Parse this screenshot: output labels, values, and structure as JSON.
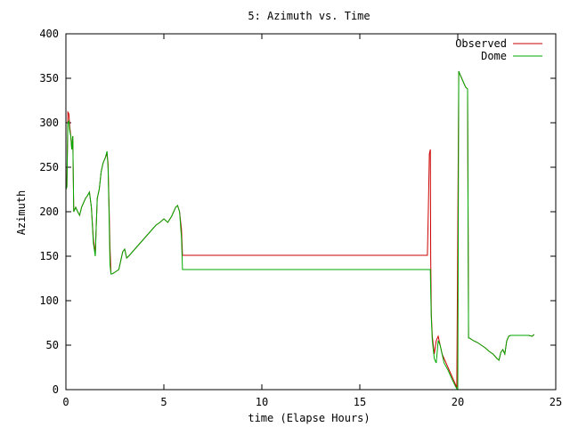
{
  "chart_data": {
    "type": "line",
    "title": "5: Azimuth vs. Time",
    "xlabel": "time (Elapse Hours)",
    "ylabel": "Azimuth",
    "xlim": [
      0,
      25
    ],
    "ylim": [
      0,
      400
    ],
    "xticks": [
      0,
      5,
      10,
      15,
      20,
      25
    ],
    "yticks": [
      0,
      50,
      100,
      150,
      200,
      250,
      300,
      350,
      400
    ],
    "grid": false,
    "legend": "top-right",
    "series": [
      {
        "name": "Observed",
        "color": "#cc0000",
        "x": [
          0.0,
          0.05,
          0.1,
          0.15,
          0.2,
          0.25,
          0.3,
          0.35,
          0.4,
          0.5,
          0.6,
          0.7,
          0.8,
          0.9,
          1.0,
          1.1,
          1.2,
          1.3,
          1.4,
          1.5,
          1.55,
          1.6,
          1.7,
          1.8,
          1.9,
          2.0,
          2.1,
          2.15,
          2.2,
          2.25,
          2.3,
          2.35,
          2.5,
          2.7,
          2.9,
          3.0,
          3.1,
          3.2,
          3.4,
          3.6,
          3.8,
          4.0,
          4.2,
          4.4,
          4.6,
          4.8,
          5.0,
          5.2,
          5.4,
          5.5,
          5.6,
          5.7,
          5.8,
          5.85,
          5.9,
          5.95,
          6.0,
          8.0,
          10.0,
          12.0,
          14.0,
          16.0,
          18.0,
          18.4,
          18.45,
          18.5,
          18.55,
          18.6,
          18.62,
          18.65,
          18.7,
          18.8,
          18.9,
          19.0,
          19.1,
          19.2,
          19.3,
          19.5,
          19.7,
          19.9,
          19.95,
          20.0,
          20.05,
          20.1,
          20.2,
          20.3,
          20.4,
          20.5,
          20.55,
          20.6,
          20.8,
          21.0,
          21.2,
          21.4,
          21.6,
          21.8,
          22.0,
          22.1,
          22.2,
          22.3,
          22.4,
          22.5,
          22.6,
          22.7,
          22.8,
          23.0,
          23.2,
          23.4,
          23.6,
          23.8,
          23.9
        ],
        "values": [
          225,
          228,
          312,
          310,
          295,
          285,
          270,
          285,
          200,
          205,
          200,
          196,
          205,
          210,
          215,
          218,
          222,
          205,
          170,
          152,
          185,
          215,
          225,
          245,
          255,
          260,
          265,
          255,
          210,
          160,
          130,
          130,
          132,
          135,
          155,
          158,
          148,
          150,
          155,
          160,
          165,
          170,
          175,
          180,
          185,
          188,
          192,
          188,
          195,
          200,
          205,
          207,
          200,
          190,
          180,
          151,
          151,
          151,
          151,
          151,
          151,
          151,
          151,
          151,
          151,
          205,
          265,
          270,
          150,
          85,
          60,
          40,
          55,
          60,
          50,
          40,
          35,
          25,
          15,
          5,
          2,
          180,
          358,
          355,
          350,
          345,
          340,
          338,
          58,
          58,
          55,
          53,
          50,
          47,
          43,
          40,
          35,
          33,
          42,
          45,
          40,
          55,
          60,
          61,
          61,
          61,
          61,
          61,
          61,
          60,
          62
        ]
      },
      {
        "name": "Dome",
        "color": "#00aa00",
        "x": [
          0.0,
          0.05,
          0.1,
          0.15,
          0.2,
          0.25,
          0.3,
          0.35,
          0.4,
          0.5,
          0.6,
          0.7,
          0.8,
          0.9,
          1.0,
          1.1,
          1.2,
          1.3,
          1.4,
          1.5,
          1.55,
          1.6,
          1.7,
          1.8,
          1.9,
          2.0,
          2.1,
          2.15,
          2.2,
          2.25,
          2.3,
          2.35,
          2.5,
          2.7,
          2.9,
          3.0,
          3.1,
          3.2,
          3.4,
          3.6,
          3.8,
          4.0,
          4.2,
          4.4,
          4.6,
          4.8,
          5.0,
          5.2,
          5.4,
          5.5,
          5.6,
          5.7,
          5.8,
          5.85,
          5.9,
          5.95,
          6.0,
          8.0,
          10.0,
          12.0,
          14.0,
          16.0,
          18.0,
          18.4,
          18.45,
          18.5,
          18.55,
          18.6,
          18.62,
          18.65,
          18.7,
          18.8,
          18.9,
          19.0,
          19.1,
          19.2,
          19.3,
          19.5,
          19.7,
          19.9,
          19.95,
          20.0,
          20.05,
          20.1,
          20.2,
          20.3,
          20.4,
          20.5,
          20.55,
          20.6,
          20.8,
          21.0,
          21.2,
          21.4,
          21.6,
          21.8,
          22.0,
          22.1,
          22.2,
          22.3,
          22.4,
          22.5,
          22.6,
          22.7,
          22.8,
          23.0,
          23.2,
          23.4,
          23.6,
          23.8,
          23.9
        ],
        "values": [
          225,
          228,
          300,
          302,
          290,
          285,
          270,
          285,
          200,
          205,
          200,
          196,
          205,
          210,
          215,
          218,
          222,
          205,
          165,
          150,
          185,
          215,
          225,
          245,
          255,
          260,
          268,
          250,
          200,
          140,
          130,
          130,
          132,
          135,
          155,
          158,
          148,
          150,
          155,
          160,
          165,
          170,
          175,
          180,
          185,
          188,
          192,
          188,
          195,
          200,
          205,
          207,
          200,
          185,
          170,
          135,
          135,
          135,
          135,
          135,
          135,
          135,
          135,
          135,
          135,
          135,
          135,
          135,
          110,
          80,
          55,
          35,
          30,
          55,
          50,
          40,
          30,
          22,
          12,
          3,
          1,
          1,
          358,
          355,
          350,
          345,
          340,
          338,
          58,
          58,
          55,
          53,
          50,
          47,
          43,
          40,
          35,
          33,
          42,
          45,
          40,
          55,
          60,
          61,
          61,
          61,
          61,
          61,
          61,
          60,
          62
        ]
      }
    ]
  }
}
